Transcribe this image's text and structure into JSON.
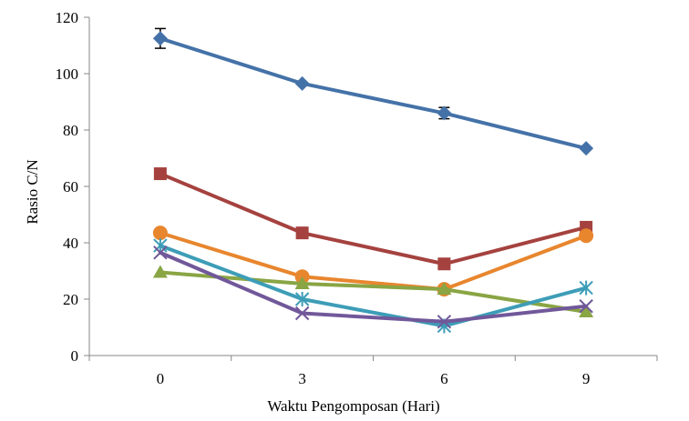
{
  "chart_data": {
    "type": "line",
    "title": "",
    "xlabel": "Waktu Pengomposan (Hari)",
    "ylabel": "Rasio C/N",
    "categories": [
      "0",
      "3",
      "6",
      "9"
    ],
    "ylim": [
      0,
      120
    ],
    "yticks": [
      "0",
      "20",
      "40",
      "60",
      "80",
      "100",
      "120"
    ],
    "grid": false,
    "legend": "none",
    "series": [
      {
        "color": "#4472A8",
        "marker": "diamond",
        "values": [
          112.5,
          96.5,
          86,
          73.5
        ],
        "errors": [
          3.5,
          0,
          2,
          0
        ]
      },
      {
        "color": "#A5423F",
        "marker": "square",
        "values": [
          64.5,
          43.5,
          32.5,
          45.5
        ],
        "errors": [
          0,
          0,
          0,
          0
        ]
      },
      {
        "color": "#E8862E",
        "marker": "circle",
        "values": [
          43.5,
          28,
          23.5,
          42.5
        ],
        "errors": [
          0,
          0,
          0,
          0
        ]
      },
      {
        "color": "#89A544",
        "marker": "triangle",
        "values": [
          29.5,
          25.5,
          23.5,
          15.5
        ],
        "errors": [
          0,
          0,
          0,
          0
        ]
      },
      {
        "color": "#3D9DB7",
        "marker": "asterisk",
        "values": [
          39,
          20,
          10.5,
          24
        ],
        "errors": [
          0,
          0,
          0,
          0
        ]
      },
      {
        "color": "#71589A",
        "marker": "x",
        "values": [
          36.5,
          15,
          12,
          17.5
        ],
        "errors": [
          0,
          0,
          0,
          0
        ]
      }
    ]
  }
}
